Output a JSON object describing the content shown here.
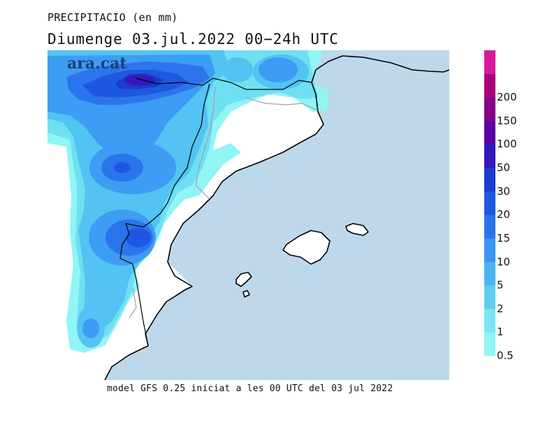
{
  "header": {
    "title": "PRECIPITACIO (en mm)",
    "subtitle": "Diumenge  03.jul.2022 00−24h UTC"
  },
  "brand": {
    "logo_text": "ara.cat"
  },
  "footer": {
    "model_text": "model GFS 0.25 iniciat a les 00 UTC del 03 jul 2022"
  },
  "legend": {
    "levels": [
      {
        "label": "0.5",
        "color": "#8ff5f5"
      },
      {
        "label": "1",
        "color": "#79e6f0"
      },
      {
        "label": "2",
        "color": "#5fcdf0"
      },
      {
        "label": "5",
        "color": "#4cb4f4"
      },
      {
        "label": "10",
        "color": "#3c94f4"
      },
      {
        "label": "15",
        "color": "#2c74ec"
      },
      {
        "label": "20",
        "color": "#1f58e0"
      },
      {
        "label": "30",
        "color": "#1a3cd0"
      },
      {
        "label": "50",
        "color": "#3418bc"
      },
      {
        "label": "100",
        "color": "#5a00a4"
      },
      {
        "label": "150",
        "color": "#860088"
      },
      {
        "label": "200",
        "color": "#a8007a"
      },
      {
        "label": "",
        "color": "#d81aa0"
      }
    ]
  },
  "map": {
    "sea_color": "#bcd8ea",
    "land_color": "#ffffff"
  }
}
